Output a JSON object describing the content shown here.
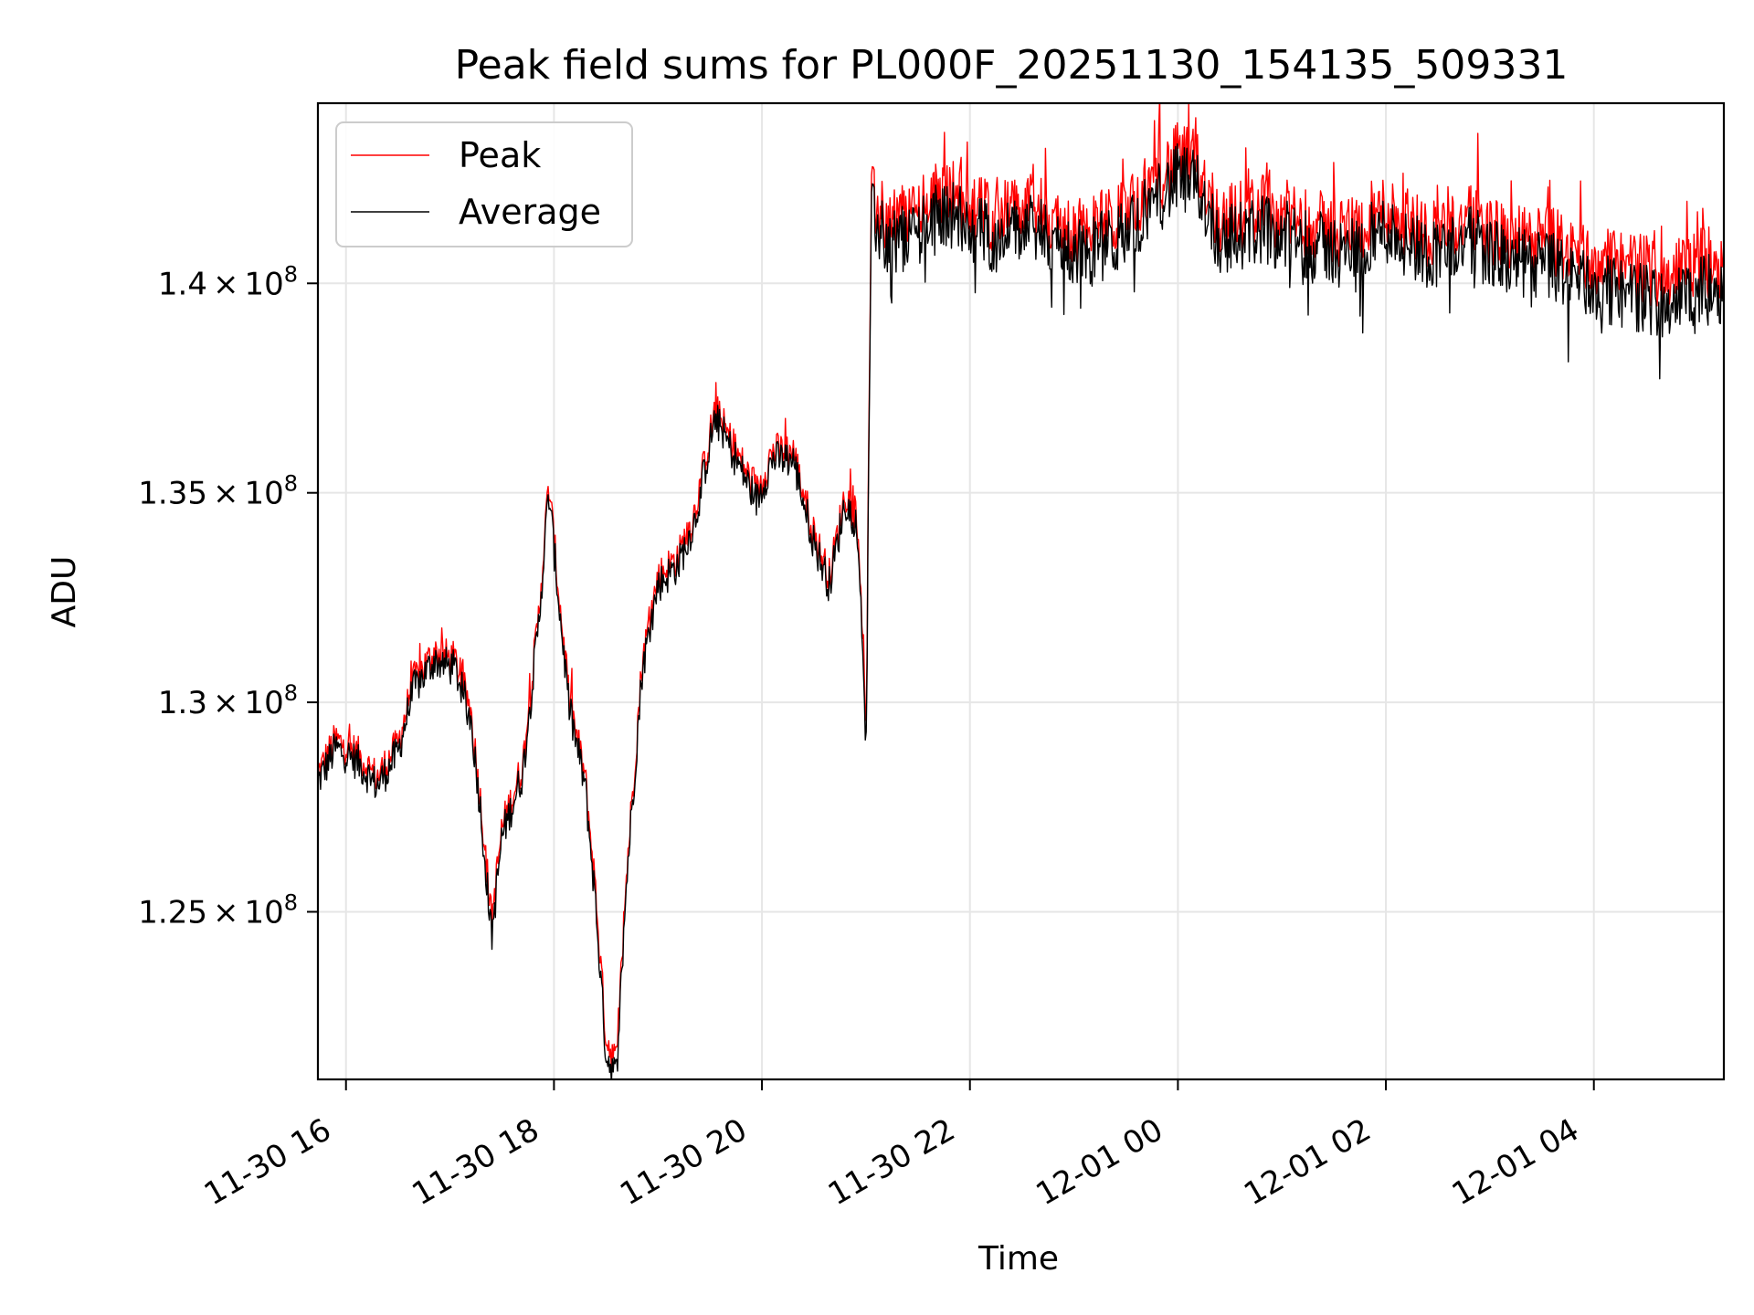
{
  "chart_data": {
    "type": "line",
    "title": "Peak field sums for PL000F_20251130_154135_509331",
    "xlabel": "Time",
    "ylabel": "ADU",
    "xlim_hours": [
      15.73,
      5.25
    ],
    "ylim": [
      121000000,
      144300000
    ],
    "grid": true,
    "legend_position": "top-left",
    "x_ticks": [
      {
        "label": "11-30 16",
        "hour": 16
      },
      {
        "label": "11-30 18",
        "hour": 18
      },
      {
        "label": "11-30 20",
        "hour": 20
      },
      {
        "label": "11-30 22",
        "hour": 22
      },
      {
        "label": "12-01 00",
        "hour": 24
      },
      {
        "label": "12-01 02",
        "hour": 26
      },
      {
        "label": "12-01 04",
        "hour": 28
      }
    ],
    "y_ticks": [
      {
        "mantissa": "1.25",
        "times": "×",
        "base": "10",
        "exp": "8",
        "value": 125000000
      },
      {
        "mantissa": "1.3",
        "times": "×",
        "base": "10",
        "exp": "8",
        "value": 130000000
      },
      {
        "mantissa": "1.35",
        "times": "×",
        "base": "10",
        "exp": "8",
        "value": 135000000
      },
      {
        "mantissa": "1.4",
        "times": "×",
        "base": "10",
        "exp": "8",
        "value": 140000000
      }
    ],
    "series": [
      {
        "name": "Peak",
        "color": "#ff0000",
        "description": "anchor values of approximate trend (hour offset from 11-30 00:00, ADU in units of 1e8)",
        "anchors": [
          [
            15.73,
            1.283
          ],
          [
            15.9,
            1.291
          ],
          [
            16.1,
            1.288
          ],
          [
            16.3,
            1.282
          ],
          [
            16.5,
            1.29
          ],
          [
            16.65,
            1.305
          ],
          [
            16.85,
            1.312
          ],
          [
            17.05,
            1.31
          ],
          [
            17.2,
            1.298
          ],
          [
            17.3,
            1.275
          ],
          [
            17.4,
            1.248
          ],
          [
            17.5,
            1.27
          ],
          [
            17.7,
            1.285
          ],
          [
            17.85,
            1.32
          ],
          [
            17.95,
            1.352
          ],
          [
            18.05,
            1.325
          ],
          [
            18.15,
            1.3
          ],
          [
            18.3,
            1.282
          ],
          [
            18.4,
            1.255
          ],
          [
            18.5,
            1.22
          ],
          [
            18.6,
            1.214
          ],
          [
            18.7,
            1.26
          ],
          [
            18.85,
            1.31
          ],
          [
            19.0,
            1.33
          ],
          [
            19.2,
            1.335
          ],
          [
            19.35,
            1.345
          ],
          [
            19.55,
            1.37
          ],
          [
            19.75,
            1.36
          ],
          [
            19.95,
            1.35
          ],
          [
            20.1,
            1.36
          ],
          [
            20.3,
            1.36
          ],
          [
            20.5,
            1.34
          ],
          [
            20.65,
            1.33
          ],
          [
            20.8,
            1.35
          ],
          [
            20.9,
            1.345
          ],
          [
            20.95,
            1.33
          ],
          [
            21.0,
            1.288
          ],
          [
            21.05,
            1.42
          ],
          [
            21.2,
            1.415
          ],
          [
            21.5,
            1.418
          ],
          [
            21.8,
            1.422
          ],
          [
            22.2,
            1.416
          ],
          [
            22.6,
            1.418
          ],
          [
            23.0,
            1.412
          ],
          [
            23.4,
            1.415
          ],
          [
            23.8,
            1.425
          ],
          [
            24.0,
            1.43
          ],
          [
            24.2,
            1.428
          ],
          [
            24.4,
            1.415
          ],
          [
            24.8,
            1.418
          ],
          [
            25.2,
            1.415
          ],
          [
            25.6,
            1.412
          ],
          [
            26.0,
            1.418
          ],
          [
            26.4,
            1.412
          ],
          [
            26.8,
            1.415
          ],
          [
            27.2,
            1.41
          ],
          [
            27.6,
            1.41
          ],
          [
            28.0,
            1.405
          ],
          [
            28.4,
            1.404
          ],
          [
            28.7,
            1.402
          ],
          [
            29.0,
            1.405
          ],
          [
            29.25,
            1.405
          ]
        ]
      },
      {
        "name": "Average",
        "color": "#000000",
        "description": "tracks Peak slightly below, with downward dips",
        "anchors": [
          [
            15.73,
            1.281
          ],
          [
            15.9,
            1.289
          ],
          [
            16.1,
            1.286
          ],
          [
            16.3,
            1.28
          ],
          [
            16.5,
            1.288
          ],
          [
            16.65,
            1.303
          ],
          [
            16.85,
            1.31
          ],
          [
            17.05,
            1.308
          ],
          [
            17.2,
            1.296
          ],
          [
            17.3,
            1.273
          ],
          [
            17.4,
            1.244
          ],
          [
            17.5,
            1.268
          ],
          [
            17.7,
            1.283
          ],
          [
            17.85,
            1.318
          ],
          [
            17.95,
            1.35
          ],
          [
            18.05,
            1.323
          ],
          [
            18.15,
            1.298
          ],
          [
            18.3,
            1.28
          ],
          [
            18.4,
            1.252
          ],
          [
            18.5,
            1.216
          ],
          [
            18.6,
            1.211
          ],
          [
            18.7,
            1.258
          ],
          [
            18.85,
            1.308
          ],
          [
            19.0,
            1.328
          ],
          [
            19.2,
            1.333
          ],
          [
            19.35,
            1.343
          ],
          [
            19.55,
            1.368
          ],
          [
            19.75,
            1.358
          ],
          [
            19.95,
            1.348
          ],
          [
            20.1,
            1.358
          ],
          [
            20.3,
            1.358
          ],
          [
            20.5,
            1.338
          ],
          [
            20.65,
            1.328
          ],
          [
            20.8,
            1.348
          ],
          [
            20.9,
            1.343
          ],
          [
            20.95,
            1.328
          ],
          [
            21.0,
            1.283
          ],
          [
            21.05,
            1.416
          ],
          [
            21.2,
            1.41
          ],
          [
            21.5,
            1.413
          ],
          [
            21.8,
            1.417
          ],
          [
            22.2,
            1.411
          ],
          [
            22.6,
            1.413
          ],
          [
            23.0,
            1.407
          ],
          [
            23.4,
            1.41
          ],
          [
            23.8,
            1.42
          ],
          [
            24.0,
            1.425
          ],
          [
            24.2,
            1.423
          ],
          [
            24.4,
            1.41
          ],
          [
            24.8,
            1.413
          ],
          [
            25.2,
            1.41
          ],
          [
            25.6,
            1.407
          ],
          [
            26.0,
            1.413
          ],
          [
            26.4,
            1.407
          ],
          [
            26.8,
            1.41
          ],
          [
            27.2,
            1.405
          ],
          [
            27.6,
            1.404
          ],
          [
            28.0,
            1.399
          ],
          [
            28.4,
            1.397
          ],
          [
            28.7,
            1.395
          ],
          [
            29.0,
            1.398
          ],
          [
            29.25,
            1.399
          ]
        ]
      }
    ]
  }
}
